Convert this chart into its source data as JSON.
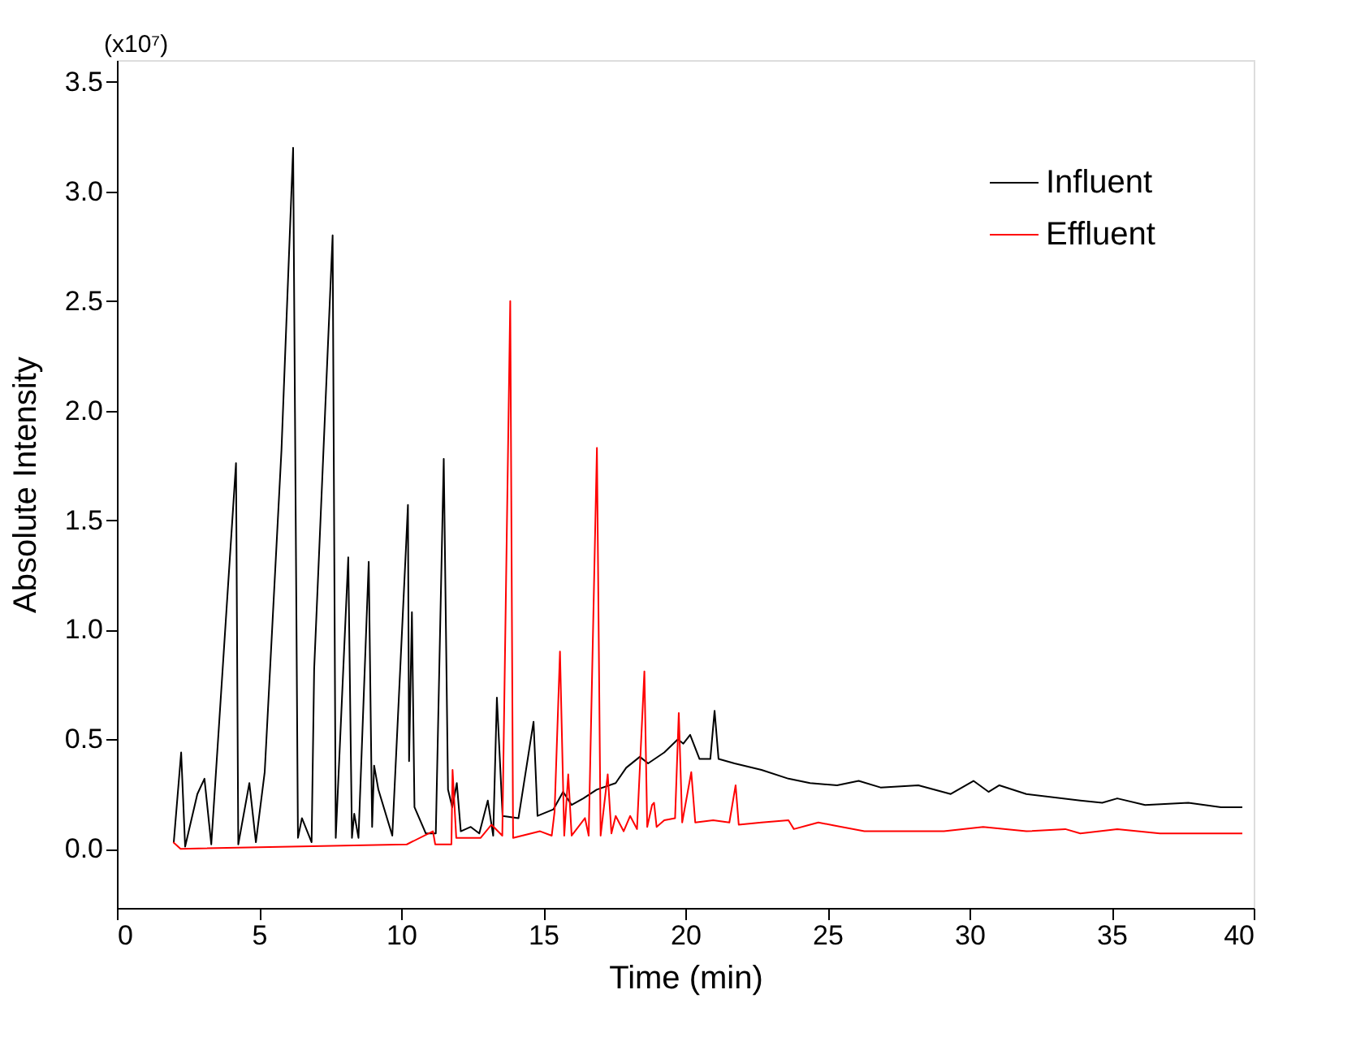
{
  "chart_data": {
    "type": "line",
    "xlabel": "Time (min)",
    "ylabel": "Absolute Intensity",
    "annotations": [
      "(x10⁷)"
    ],
    "xlim": [
      0,
      40
    ],
    "xticks": [
      0,
      5,
      10,
      15,
      20,
      25,
      30,
      35,
      40
    ],
    "ylim": [
      -0.27,
      3.6
    ],
    "yticks": [
      {
        "value": 0,
        "label": "0.0"
      },
      {
        "value": 0.5,
        "label": "0.5"
      },
      {
        "value": 1,
        "label": "1.0"
      },
      {
        "value": 1.5,
        "label": "1.5"
      },
      {
        "value": 2,
        "label": "2.0"
      },
      {
        "value": 2.5,
        "label": "2.5"
      },
      {
        "value": 3,
        "label": "3.0"
      },
      {
        "value": 3.5,
        "label": "3.5"
      }
    ],
    "grid": false,
    "legend": "top right",
    "marker": "none",
    "line_style": "solid",
    "series": [
      {
        "name": "Influent",
        "color": "#000000",
        "x": [
          2.0,
          2.26,
          2.4,
          2.83,
          3.08,
          3.32,
          4.19,
          4.27,
          4.66,
          4.89,
          5.2,
          5.79,
          6.2,
          6.37,
          6.51,
          6.85,
          6.94,
          7.59,
          7.7,
          8.14,
          8.27,
          8.35,
          8.5,
          8.86,
          8.98,
          9.05,
          9.2,
          9.69,
          10.18,
          10.24,
          10.28,
          10.38,
          10.47,
          10.87,
          11.22,
          11.5,
          11.65,
          11.8,
          11.96,
          12.1,
          12.45,
          12.75,
          13.05,
          13.24,
          13.37,
          13.57,
          14.13,
          14.66,
          14.8,
          15.36,
          15.7,
          16.0,
          16.41,
          16.88,
          17.55,
          17.92,
          18.4,
          18.69,
          19.26,
          19.74,
          19.93,
          20.17,
          20.5,
          20.88,
          21.03,
          21.17,
          21.73,
          22.68,
          23.63,
          24.39,
          25.34,
          26.1,
          26.87,
          28.2,
          29.34,
          30.14,
          30.67,
          31.05,
          32.0,
          33.9,
          34.67,
          35.2,
          36.18,
          37.7,
          38.85,
          39.6
        ],
        "values": [
          0.03,
          0.44,
          0.01,
          0.25,
          0.32,
          0.02,
          1.76,
          0.02,
          0.3,
          0.03,
          0.35,
          1.82,
          3.2,
          0.05,
          0.14,
          0.03,
          0.82,
          2.8,
          0.05,
          1.33,
          0.05,
          0.16,
          0.05,
          1.31,
          0.1,
          0.38,
          0.27,
          0.06,
          1.4,
          1.57,
          0.4,
          1.08,
          0.19,
          0.07,
          0.07,
          1.78,
          0.27,
          0.19,
          0.3,
          0.08,
          0.1,
          0.07,
          0.22,
          0.06,
          0.69,
          0.15,
          0.14,
          0.58,
          0.15,
          0.18,
          0.26,
          0.2,
          0.23,
          0.27,
          0.3,
          0.37,
          0.42,
          0.39,
          0.44,
          0.5,
          0.48,
          0.52,
          0.41,
          0.41,
          0.63,
          0.41,
          0.39,
          0.36,
          0.32,
          0.3,
          0.29,
          0.31,
          0.28,
          0.29,
          0.25,
          0.31,
          0.26,
          0.29,
          0.25,
          0.22,
          0.21,
          0.23,
          0.2,
          0.21,
          0.19,
          0.19
        ]
      },
      {
        "name": "Effluent",
        "color": "#ff0000",
        "x": [
          1.98,
          2.24,
          10.2,
          11.12,
          11.2,
          11.77,
          11.81,
          11.94,
          12.8,
          13.18,
          13.56,
          13.84,
          13.94,
          14.89,
          15.3,
          15.4,
          15.59,
          15.74,
          15.88,
          16.0,
          16.47,
          16.6,
          16.89,
          17.02,
          17.27,
          17.4,
          17.55,
          17.83,
          18.06,
          18.3,
          18.56,
          18.66,
          18.83,
          18.9,
          18.99,
          19.26,
          19.64,
          19.77,
          19.89,
          20.21,
          20.35,
          20.98,
          21.55,
          21.77,
          21.88,
          22.68,
          23.63,
          23.82,
          24.68,
          26.3,
          29.1,
          30.48,
          32.0,
          33.37,
          33.9,
          35.2,
          36.7,
          39.6
        ],
        "values": [
          0.03,
          0.0,
          0.02,
          0.08,
          0.02,
          0.02,
          0.36,
          0.05,
          0.05,
          0.11,
          0.06,
          2.5,
          0.05,
          0.08,
          0.06,
          0.17,
          0.9,
          0.06,
          0.34,
          0.06,
          0.14,
          0.06,
          1.83,
          0.06,
          0.34,
          0.07,
          0.15,
          0.08,
          0.15,
          0.09,
          0.81,
          0.1,
          0.2,
          0.21,
          0.1,
          0.13,
          0.14,
          0.62,
          0.12,
          0.35,
          0.12,
          0.13,
          0.12,
          0.29,
          0.11,
          0.12,
          0.13,
          0.09,
          0.12,
          0.08,
          0.08,
          0.1,
          0.08,
          0.09,
          0.07,
          0.09,
          0.07,
          0.07
        ]
      }
    ]
  }
}
